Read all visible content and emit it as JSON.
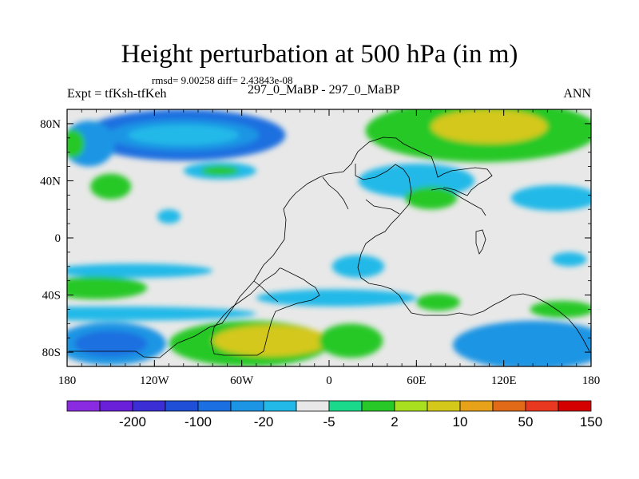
{
  "header": {
    "title": "Height perturbation at 500 hPa (in m)",
    "stats": "rmsd= 9.00258 diff= 2.43843e-08",
    "left_label": "Expt = tfKsh-tfKeh",
    "center_label": "297_0_MaBP - 297_0_MaBP",
    "right_label": "ANN"
  },
  "chart_data": {
    "type": "heatmap",
    "title": "Height perturbation at 500 hPa (in m)",
    "xlabel": "",
    "ylabel": "",
    "xlim": [
      -180,
      180
    ],
    "ylim": [
      -90,
      90
    ],
    "x_ticks": [
      {
        "value": -180,
        "label": "180"
      },
      {
        "value": -120,
        "label": "120W"
      },
      {
        "value": -60,
        "label": "60W"
      },
      {
        "value": 0,
        "label": "0"
      },
      {
        "value": 60,
        "label": "60E"
      },
      {
        "value": 120,
        "label": "120E"
      },
      {
        "value": 180,
        "label": "180"
      }
    ],
    "y_ticks": [
      {
        "value": 80,
        "label": "80N"
      },
      {
        "value": 40,
        "label": "40N"
      },
      {
        "value": 0,
        "label": "0"
      },
      {
        "value": -40,
        "label": "40S"
      },
      {
        "value": -80,
        "label": "80S"
      }
    ],
    "colorbar": {
      "colors": [
        "#8a2be2",
        "#6a1fd8",
        "#3b2ed4",
        "#1f4fd6",
        "#1b6fe0",
        "#1c95e4",
        "#22b9e8",
        "#e8e8e8",
        "#1ad98a",
        "#28c828",
        "#a8e020",
        "#d4c81a",
        "#e8a21a",
        "#e06a18",
        "#e83820",
        "#d40000"
      ],
      "labels": [
        {
          "after_index": 1,
          "text": "-200"
        },
        {
          "after_index": 3,
          "text": "-100"
        },
        {
          "after_index": 5,
          "text": "-20"
        },
        {
          "after_index": 7,
          "text": "-5"
        },
        {
          "after_index": 9,
          "text": "2"
        },
        {
          "after_index": 11,
          "text": "10"
        },
        {
          "after_index": 13,
          "text": "50"
        },
        {
          "after_index": 15,
          "text": "150"
        }
      ]
    },
    "blobs": [
      {
        "lon": -100,
        "lat": 72,
        "rlon": 70,
        "rlat": 18,
        "value": -40
      },
      {
        "lon": -100,
        "lat": 72,
        "rlon": 52,
        "rlat": 11,
        "value": -15
      },
      {
        "lon": -100,
        "lat": 72,
        "rlon": 38,
        "rlat": 7,
        "value": -4
      },
      {
        "lon": -165,
        "lat": 66,
        "rlon": 18,
        "rlat": 16,
        "value": -15
      },
      {
        "lon": -176,
        "lat": 66,
        "rlon": 8,
        "rlat": 10,
        "value": 6
      },
      {
        "lon": -75,
        "lat": 47,
        "rlon": 25,
        "rlat": 6,
        "value": -4
      },
      {
        "lon": -75,
        "lat": 47,
        "rlon": 13,
        "rlat": 3.5,
        "value": 8
      },
      {
        "lon": -150,
        "lat": 36,
        "rlon": 14,
        "rlat": 9,
        "value": 5
      },
      {
        "lon": -110,
        "lat": 15,
        "rlon": 8,
        "rlat": 5,
        "value": -4
      },
      {
        "lon": -135,
        "lat": -23,
        "rlon": 55,
        "rlat": 5,
        "value": -4
      },
      {
        "lon": -160,
        "lat": -35,
        "rlon": 35,
        "rlat": 8,
        "value": 6
      },
      {
        "lon": -150,
        "lat": -53,
        "rlon": 100,
        "rlat": 5,
        "value": -4
      },
      {
        "lon": -150,
        "lat": -74,
        "rlon": 38,
        "rlat": 15,
        "value": -15
      },
      {
        "lon": -150,
        "lat": -74,
        "rlon": 25,
        "rlat": 9,
        "value": -40
      },
      {
        "lon": -55,
        "lat": -74,
        "rlon": 55,
        "rlat": 16,
        "value": 9
      },
      {
        "lon": -40,
        "lat": -72,
        "rlon": 40,
        "rlat": 11,
        "value": 30
      },
      {
        "lon": 5,
        "lat": -42,
        "rlon": 55,
        "rlat": 6,
        "value": -4
      },
      {
        "lon": 15,
        "lat": -72,
        "rlon": 22,
        "rlat": 12,
        "value": 9
      },
      {
        "lon": 75,
        "lat": -45,
        "rlon": 15,
        "rlat": 6,
        "value": 6
      },
      {
        "lon": 140,
        "lat": -75,
        "rlon": 55,
        "rlat": 17,
        "value": -15
      },
      {
        "lon": 160,
        "lat": -50,
        "rlon": 22,
        "rlat": 6,
        "value": 6
      },
      {
        "lon": 105,
        "lat": 75,
        "rlon": 80,
        "rlat": 22,
        "value": 9
      },
      {
        "lon": 110,
        "lat": 78,
        "rlon": 40,
        "rlat": 12,
        "value": 30
      },
      {
        "lon": 60,
        "lat": 40,
        "rlon": 40,
        "rlat": 12,
        "value": -4
      },
      {
        "lon": 70,
        "lat": 28,
        "rlon": 18,
        "rlat": 8,
        "value": 6
      },
      {
        "lon": 155,
        "lat": 28,
        "rlon": 30,
        "rlat": 9,
        "value": -4
      },
      {
        "lon": 20,
        "lat": -20,
        "rlon": 18,
        "rlat": 8,
        "value": -4
      },
      {
        "lon": 165,
        "lat": -15,
        "rlon": 12,
        "rlat": 5,
        "value": -4
      }
    ]
  }
}
